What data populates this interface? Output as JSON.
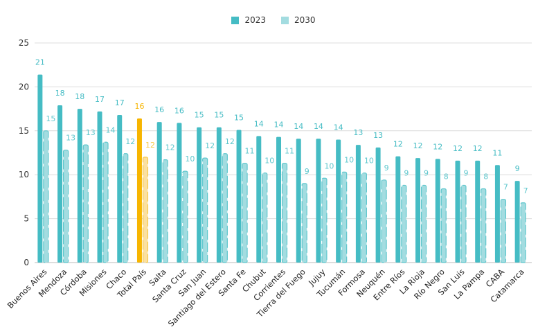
{
  "chart_data": {
    "type": "bar",
    "title": "",
    "xlabel": "",
    "ylabel": "",
    "ylim": [
      0,
      25
    ],
    "yticks": [
      0,
      5,
      10,
      15,
      20,
      25
    ],
    "grid": true,
    "legend_position": "top-center",
    "categories": [
      "Buenos Aires",
      "Mendoza",
      "Córdoba",
      "Misiones",
      "Chaco",
      "Total País",
      "Salta",
      "Santa Cruz",
      "San Juan",
      "Santiago del Estero",
      "Santa Fe",
      "Chubut",
      "Corrientes",
      "Tierra del Fuego",
      "Jujuy",
      "Tucumán",
      "Formosa",
      "Neuquén",
      "Entre Ríos",
      "La Rioja",
      "Río Negro",
      "San Luis",
      "La Pampa",
      "CABA",
      "Catamarca"
    ],
    "highlight_category": "Total País",
    "series": [
      {
        "name": "2023",
        "color": "#45bcc4",
        "highlight_color": "#f7b500",
        "values": [
          21.4,
          17.9,
          17.5,
          17.2,
          16.8,
          16.4,
          16.0,
          15.9,
          15.4,
          15.4,
          15.1,
          14.4,
          14.3,
          14.1,
          14.1,
          14.0,
          13.4,
          13.1,
          12.1,
          11.9,
          11.8,
          11.6,
          11.6,
          11.1,
          9.3
        ]
      },
      {
        "name": "2030",
        "color": "#a3dce0",
        "highlight_color": "#fbe0a0",
        "values": [
          15.0,
          12.8,
          13.4,
          13.7,
          12.4,
          12.0,
          11.7,
          10.4,
          11.9,
          12.4,
          11.3,
          10.2,
          11.3,
          9.0,
          9.6,
          10.3,
          10.2,
          9.4,
          8.8,
          8.8,
          8.4,
          8.8,
          8.4,
          7.2,
          6.8
        ]
      }
    ]
  }
}
